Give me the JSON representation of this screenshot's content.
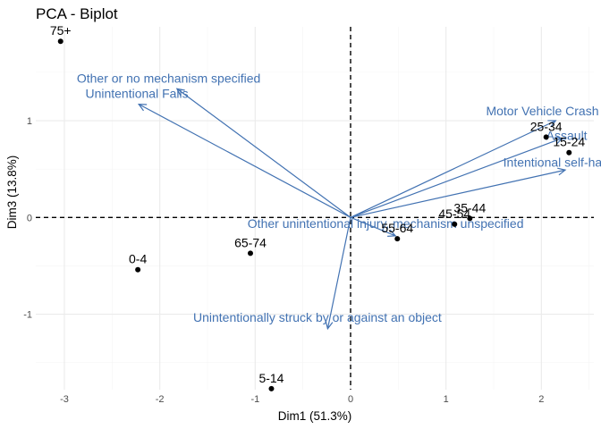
{
  "chart_data": {
    "type": "scatter",
    "title": "PCA - Biplot",
    "xlabel": "Dim1 (51.3%)",
    "ylabel": "Dim3 (13.8%)",
    "xlim": [
      -3.3,
      2.55
    ],
    "ylim": [
      -1.78,
      1.97
    ],
    "x_ticks": [
      -3,
      -2,
      -1,
      0,
      1,
      2
    ],
    "y_ticks": [
      -1,
      0,
      1
    ],
    "x_tick_labels": [
      "-3",
      "-2",
      "-1",
      "0",
      "1",
      "2"
    ],
    "y_tick_labels": [
      "-1",
      "0",
      "1"
    ],
    "grid": true,
    "reference_lines": {
      "x": 0,
      "y": 0,
      "style": "dashed"
    },
    "colors": {
      "points": "#000000",
      "variables": "#4272b2",
      "grid_major": "#ebebeb",
      "grid_minor": "#f5f5f5"
    },
    "individuals": [
      {
        "label": "75+",
        "x": -3.04,
        "y": 1.82
      },
      {
        "label": "0-4",
        "x": -2.23,
        "y": -0.54
      },
      {
        "label": "65-74",
        "x": -1.05,
        "y": -0.37
      },
      {
        "label": "5-14",
        "x": -0.83,
        "y": -1.77
      },
      {
        "label": "55-64",
        "x": 0.49,
        "y": -0.22
      },
      {
        "label": "45-54",
        "x": 1.09,
        "y": -0.07
      },
      {
        "label": "35-44",
        "x": 1.25,
        "y": -0.01
      },
      {
        "label": "25-34",
        "x": 2.05,
        "y": 0.83
      },
      {
        "label": "15-24",
        "x": 2.29,
        "y": 0.67
      }
    ],
    "variables": [
      {
        "label": "Other or no mechanism specified",
        "x": -1.82,
        "y": 1.33,
        "label_x": -2.87,
        "label_y": 1.44
      },
      {
        "label": "Unintentional Falls",
        "x": -2.22,
        "y": 1.17,
        "label_x": -2.78,
        "label_y": 1.28
      },
      {
        "label": "Motor Vehicle Crash",
        "x": 2.15,
        "y": 1.0,
        "label_x": 1.42,
        "label_y": 1.1
      },
      {
        "label": "Assault",
        "x": 2.22,
        "y": 0.82,
        "label_x": 2.05,
        "label_y": 0.85
      },
      {
        "label": "Intentional self-harm",
        "x": 2.25,
        "y": 0.49,
        "label_x": 1.6,
        "label_y": 0.57
      },
      {
        "label": "Other unintentional injury, mechanism unspecified",
        "x": 0.47,
        "y": -0.19,
        "label_x": -1.08,
        "label_y": -0.06
      },
      {
        "label": "Unintentionally struck by or against an object",
        "x": -0.24,
        "y": -1.15,
        "label_x": -1.65,
        "label_y": -1.03
      }
    ]
  }
}
